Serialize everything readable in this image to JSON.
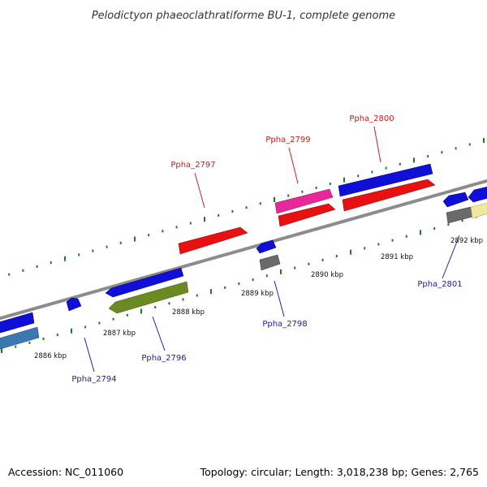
{
  "title": "Pelodictyon phaeoclathratiforme BU-1, complete genome",
  "footer": {
    "accession": "Accession: NC_011060",
    "summary": "Topology: circular; Length: 3,018,238 bp; Genes: 2,765"
  },
  "scale": {
    "unit": "kbp",
    "labels": [
      "2886 kbp",
      "2887 kbp",
      "2888 kbp",
      "2889 kbp",
      "2890 kbp",
      "2891 kbp",
      "2892 kbp"
    ]
  },
  "genes": [
    {
      "id": "Ppha_2794",
      "strand": "reverse",
      "color": "#3a3ad2"
    },
    {
      "id": "Ppha_2796",
      "strand": "reverse",
      "color": "#3a3ad2"
    },
    {
      "id": "Ppha_2797",
      "strand": "forward",
      "color": "#d21a1a"
    },
    {
      "id": "Ppha_2798",
      "strand": "reverse",
      "color": "#3a3ad2"
    },
    {
      "id": "Ppha_2799",
      "strand": "forward",
      "color": "#d21a1a"
    },
    {
      "id": "Ppha_2800",
      "strand": "forward",
      "color": "#d21a1a"
    },
    {
      "id": "Ppha_2801",
      "strand": "reverse",
      "color": "#3a3ad2"
    }
  ],
  "colors": {
    "backbone": "#8c8c8c",
    "tick": "#1e7a1e",
    "blue_gene": "#0f0fd8",
    "red_gene": "#e81010",
    "pink_gene": "#e8289a",
    "olive_gene": "#6b8a22",
    "steel_gene": "#3c78b0",
    "grey_gene": "#6a6a6a",
    "khaki_gene": "#f0e8a0"
  }
}
